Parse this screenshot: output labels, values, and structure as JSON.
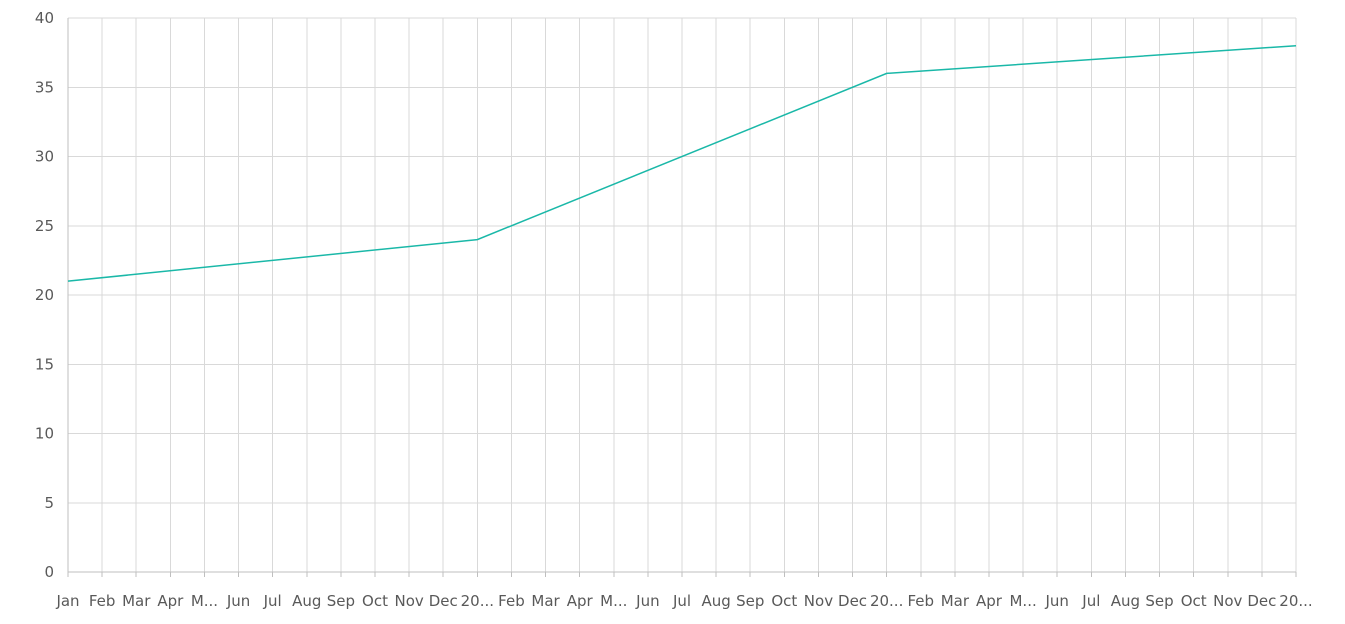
{
  "chart_data": {
    "type": "line",
    "title": "",
    "xlabel": "",
    "ylabel": "",
    "ylim": [
      0,
      40
    ],
    "yticks": [
      0,
      5,
      10,
      15,
      20,
      25,
      30,
      35,
      40
    ],
    "grid": true,
    "colors": {
      "series": "#1ab8a8",
      "grid": "#d9d9d9",
      "axis": "#bfbfbf",
      "text": "#595959"
    },
    "x_tick_labels": [
      "Jan",
      "Feb",
      "Mar",
      "Apr",
      "M...",
      "Jun",
      "Jul",
      "Aug",
      "Sep",
      "Oct",
      "Nov",
      "Dec",
      "20...",
      "Feb",
      "Mar",
      "Apr",
      "M...",
      "Jun",
      "Jul",
      "Aug",
      "Sep",
      "Oct",
      "Nov",
      "Dec",
      "20...",
      "Feb",
      "Mar",
      "Apr",
      "M...",
      "Jun",
      "Jul",
      "Aug",
      "Sep",
      "Oct",
      "Nov",
      "Dec",
      "20..."
    ],
    "series": [
      {
        "points": [
          {
            "x": "Jan",
            "index": 0,
            "y": 21
          },
          {
            "x": "20...",
            "index": 12,
            "y": 24
          },
          {
            "x": "20...",
            "index": 24,
            "y": 36
          },
          {
            "x": "20...",
            "index": 36,
            "y": 38
          }
        ]
      }
    ]
  }
}
